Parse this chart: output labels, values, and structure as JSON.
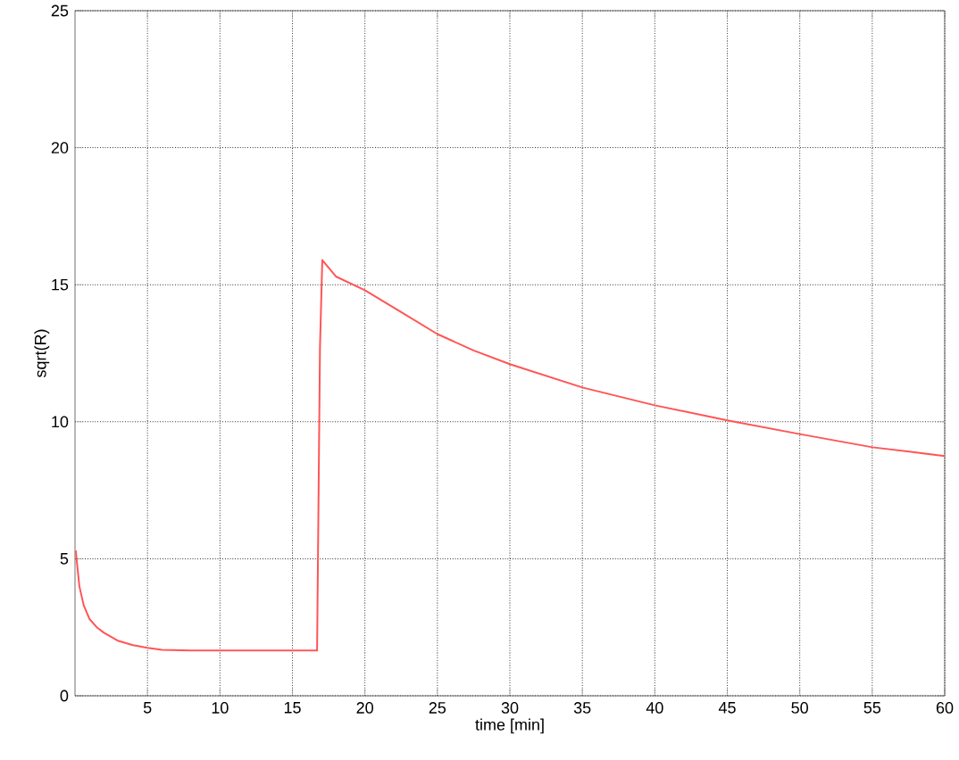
{
  "chart_data": {
    "type": "line",
    "xlabel": "time [min]",
    "ylabel": "sqrt(R)",
    "x": [
      0.05,
      0.3,
      0.6,
      1,
      1.5,
      2,
      3,
      4,
      5,
      6,
      8,
      10,
      12,
      14,
      16,
      16.7,
      16.9,
      17.06,
      18,
      20,
      22.5,
      25,
      27.5,
      30,
      35,
      40,
      45,
      50,
      55,
      60
    ],
    "series": [
      {
        "color": "#ff5555",
        "values": [
          5.3,
          4.0,
          3.3,
          2.8,
          2.5,
          2.3,
          2.0,
          1.85,
          1.75,
          1.68,
          1.65,
          1.65,
          1.65,
          1.65,
          1.65,
          1.65,
          12.7,
          15.9,
          15.3,
          14.8,
          14.0,
          13.2,
          12.6,
          12.1,
          11.25,
          10.6,
          10.05,
          9.55,
          9.07,
          8.75
        ]
      }
    ],
    "xlim": [
      0,
      60
    ],
    "ylim": [
      0,
      25
    ],
    "xticks": [
      5,
      10,
      15,
      20,
      25,
      30,
      35,
      40,
      45,
      50,
      55,
      60
    ],
    "yticks": [
      0,
      5,
      10,
      15,
      20,
      25
    ],
    "grid": true,
    "marker": "none",
    "line_style": "solid"
  }
}
